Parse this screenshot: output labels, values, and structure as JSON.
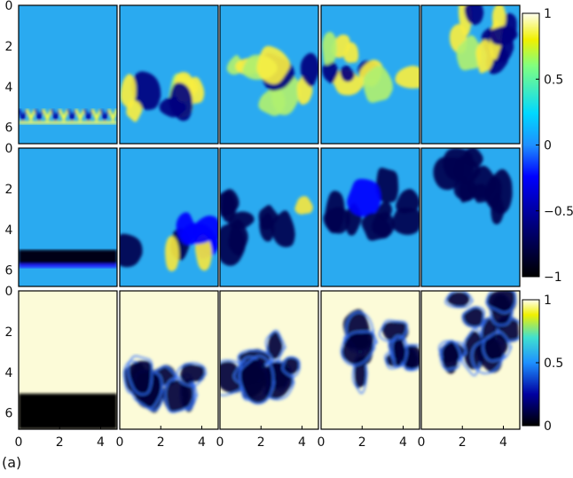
{
  "panel_label": "(a)",
  "chart_data": {
    "type": "heatmap",
    "rows": 3,
    "columns": 5,
    "ylim": [
      6.8,
      0
    ],
    "xlim": [
      0,
      4.8
    ],
    "y_ticks": [
      "0",
      "2",
      "4",
      "6"
    ],
    "x_ticks": [
      "0",
      "2",
      "4"
    ],
    "colormap": "jet",
    "colorbars": [
      {
        "name": "rows-1-2",
        "range": [
          -1,
          1
        ],
        "tick_labels": [
          "1",
          "0.5",
          "0",
          "−0.5",
          "−1"
        ],
        "tick_values": [
          1,
          0.5,
          0,
          -0.5,
          -1
        ]
      },
      {
        "name": "row-3",
        "range": [
          0,
          1
        ],
        "tick_labels": [
          "1",
          "0.5",
          "0"
        ],
        "tick_values": [
          1,
          0.5,
          0
        ]
      }
    ],
    "description_of_fields": {
      "row_background": [
        0,
        0,
        1
      ],
      "front_depth_per_column": [
        5.3,
        4.3,
        3.9,
        3.1,
        2.3
      ],
      "front_top_per_column": [
        5.0,
        4.0,
        2.7,
        1.8,
        0.2
      ]
    },
    "colors": {
      "jet_dark": "#00007f",
      "jet_blue": "#0000ff",
      "jet_cyan": "#00ffff",
      "jet_yellow": "#ffff00",
      "cream": "#fcfbd8",
      "field_blue": "#2aaaf0"
    }
  }
}
